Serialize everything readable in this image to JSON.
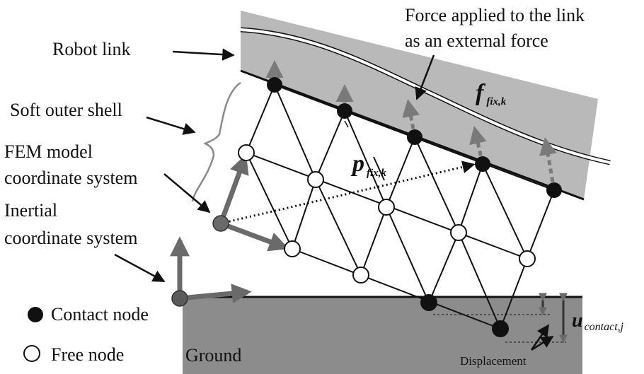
{
  "labels": {
    "robot_link": "Robot link",
    "force_line1": "Force applied to the link",
    "force_line2": "as an external force",
    "soft_shell": "Soft outer shell",
    "fem_line1": "FEM model",
    "fem_line2": "coordinate system",
    "inertial_line1": "Inertial",
    "inertial_line2": "coordinate system",
    "ground": "Ground",
    "displacement": "Displacement"
  },
  "legend": {
    "contact": "Contact node",
    "free": "Free node"
  },
  "math": {
    "f_main": "f",
    "f_sub": "fix,k",
    "p_main": "p",
    "p_sub": "fix,k",
    "u_main": "u",
    "u_sub": "contact,j"
  },
  "colors": {
    "link_fill": "#b9b9b9",
    "ground_fill": "#8c8c8c",
    "axis_gray": "#6a6a6a",
    "node_black": "#111111",
    "node_free": "#ffffff"
  }
}
